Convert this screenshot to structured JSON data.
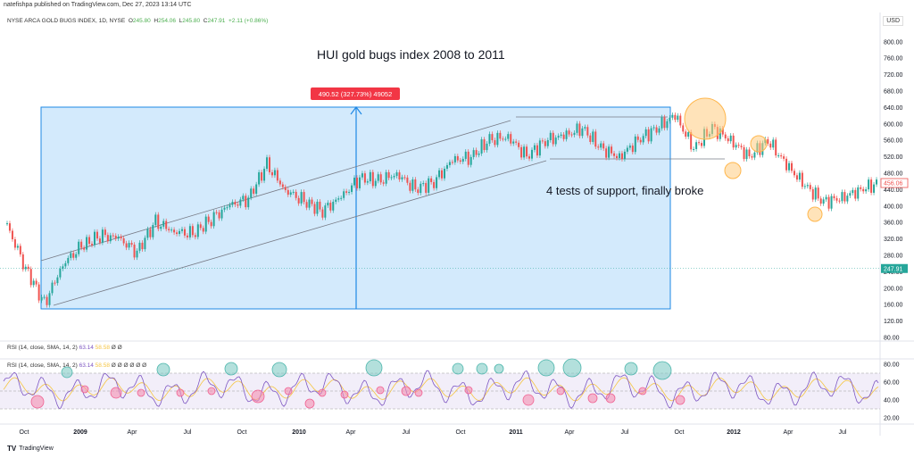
{
  "header": {
    "published": "natefishpa published on TradingView.com, Dec 27, 2023 13:14 UTC",
    "symbol": "NYSE ARCA GOLD BUGS INDEX, 1D, NYSE",
    "o_label": "O",
    "o": "245.80",
    "h_label": "H",
    "h": "254.06",
    "l_label": "L",
    "l": "245.80",
    "c_label": "C",
    "c": "247.91",
    "change": "+2.11 (+0.86%)",
    "currency": "USD"
  },
  "annotations": {
    "title": "HUI gold bugs index 2008 to 2011",
    "support_note": "4 tests of support, finally broke",
    "measure_label": "490.52 (327.73%) 49052"
  },
  "rsi": {
    "label1": "RSI (14, close, SMA, 14, 2)",
    "v1a": "63.14",
    "v1b": "58.58",
    "v1c": "Ø Ø",
    "label2": "RSI (14, close, SMA, 14, 2)",
    "v2a": "63.14",
    "v2b": "58.58",
    "v2c": "Ø Ø Ø Ø Ø Ø",
    "ticks": [
      "80.00",
      "60.00",
      "40.00",
      "20.00"
    ]
  },
  "price_axis": {
    "ticks": [
      "800.00",
      "760.00",
      "720.00",
      "680.00",
      "640.00",
      "600.00",
      "560.00",
      "520.00",
      "480.00",
      "440.00",
      "400.00",
      "360.00",
      "320.00",
      "280.00",
      "240.00",
      "200.00",
      "160.00",
      "120.00",
      "80.00"
    ],
    "tag_456": "456.06",
    "tag_last": "247.91"
  },
  "time_axis": [
    "Oct",
    "2009",
    "Apr",
    "Jul",
    "Oct",
    "2010",
    "Apr",
    "Jul",
    "Oct",
    "2011",
    "Apr",
    "Jul",
    "Oct",
    "2012",
    "Apr",
    "Jul"
  ],
  "footer": {
    "brand": "TradingView"
  },
  "colors": {
    "up": "#26a69a",
    "down": "#ef5350",
    "rsi": "#7e57c2",
    "rsi_ma": "#f5c542",
    "box": "#bbdefb",
    "box_line": "#2962ff",
    "circle_orange": "#ffcc80",
    "circle_teal": "#80cbc4",
    "circle_pink": "#f48fb1"
  },
  "chart_data": {
    "type": "candlestick",
    "title": "HUI gold bugs index 2008 to 2011",
    "ylim": [
      80,
      820
    ],
    "x_range": [
      "2008-09",
      "2012-09"
    ],
    "series": [
      {
        "x": [
          "2008-09",
          "2008-10",
          "2008-11",
          "2008-12",
          "2009-01",
          "2009-02",
          "2009-03",
          "2009-04",
          "2009-05",
          "2009-06",
          "2009-07",
          "2009-08",
          "2009-09",
          "2009-10",
          "2009-11",
          "2009-12",
          "2010-01",
          "2010-02",
          "2010-03",
          "2010-04",
          "2010-05",
          "2010-06",
          "2010-07",
          "2010-08",
          "2010-09",
          "2010-10",
          "2010-11",
          "2010-12",
          "2011-01",
          "2011-02",
          "2011-03",
          "2011-04",
          "2011-05",
          "2011-06",
          "2011-07",
          "2011-08",
          "2011-09",
          "2011-10",
          "2011-11",
          "2011-12",
          "2012-01",
          "2012-02",
          "2012-03",
          "2012-04",
          "2012-05",
          "2012-06",
          "2012-07",
          "2012-08"
        ],
        "values": [
          350,
          250,
          160,
          260,
          300,
          330,
          320,
          290,
          360,
          340,
          330,
          370,
          400,
          420,
          500,
          440,
          410,
          390,
          420,
          470,
          460,
          480,
          440,
          460,
          510,
          520,
          560,
          570,
          520,
          560,
          570,
          590,
          540,
          520,
          560,
          590,
          620,
          540,
          590,
          560,
          520,
          560,
          500,
          450,
          410,
          420,
          440,
          456
        ]
      }
    ],
    "measure": {
      "low": 150,
      "high": 640.52,
      "change": "490.52",
      "percent": "327.73%"
    }
  }
}
